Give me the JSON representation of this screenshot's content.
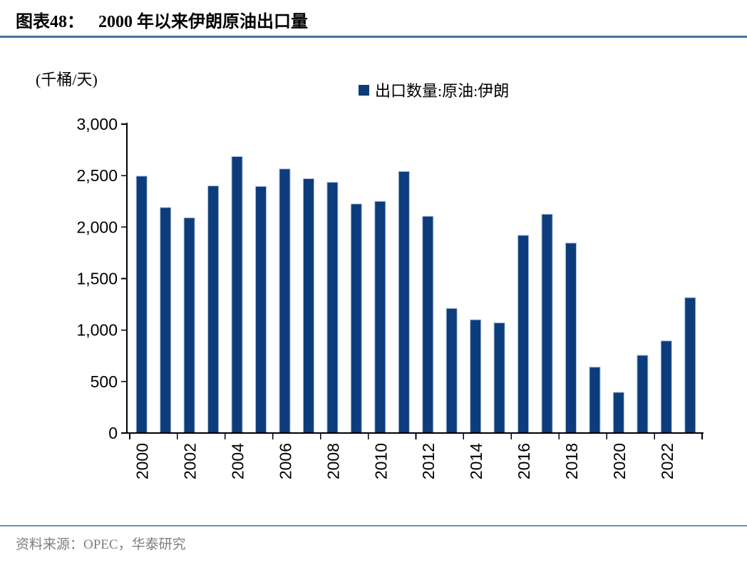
{
  "header": {
    "figure_label": "图表48：",
    "title": "2000 年以来伊朗原油出口量",
    "rule_color": "#44719F"
  },
  "chart": {
    "unit_label": "(千桶/天)",
    "legend_label": "出口数量:原油:伊朗"
  },
  "chart_data": {
    "type": "bar",
    "title": "2000 年以来伊朗原油出口量",
    "ylabel": "(千桶/天)",
    "legend": "出口数量:原油:伊朗",
    "legend_position": "top-center",
    "grid": false,
    "categories": [
      "2000",
      "2001",
      "2002",
      "2003",
      "2004",
      "2005",
      "2006",
      "2007",
      "2008",
      "2009",
      "2010",
      "2011",
      "2012",
      "2013",
      "2014",
      "2015",
      "2016",
      "2017",
      "2018",
      "2019",
      "2020",
      "2021",
      "2022",
      "2023"
    ],
    "values": [
      2495,
      2190,
      2090,
      2400,
      2685,
      2395,
      2565,
      2470,
      2435,
      2225,
      2250,
      2540,
      2105,
      1210,
      1100,
      1070,
      1920,
      2125,
      1845,
      640,
      395,
      755,
      895,
      1315
    ],
    "ylim": [
      0,
      3000
    ],
    "ytick_step": 500,
    "xtick_every": 2,
    "bar_color": "#0C3C7B",
    "bar_edge_color": "#A9BFDA",
    "axis_color": "#000000"
  },
  "footer": {
    "source": "资料来源：OPEC，华泰研究",
    "rule_color": "#6A92BE"
  }
}
